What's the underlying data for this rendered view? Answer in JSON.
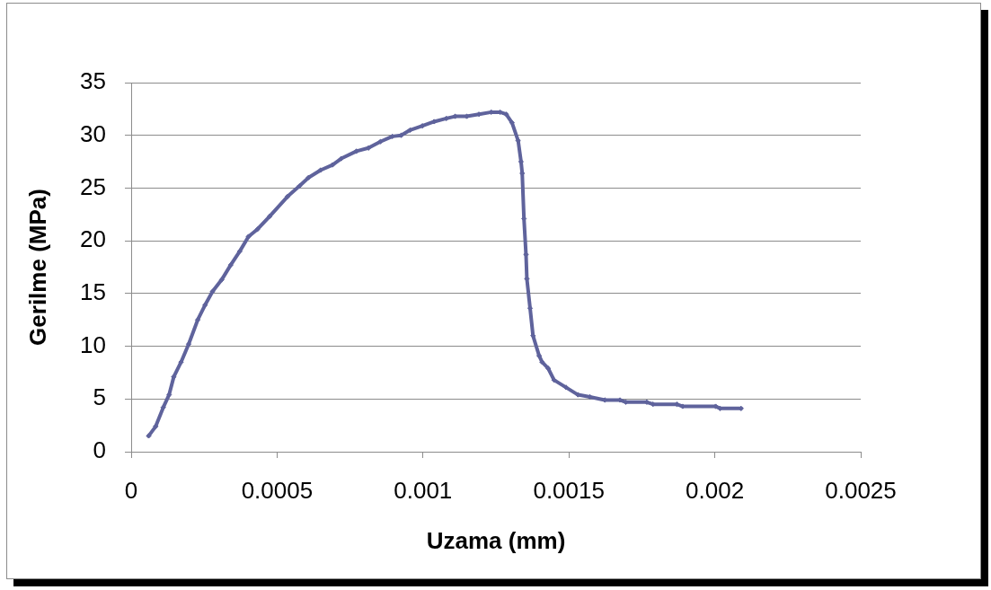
{
  "chart_data": {
    "type": "line",
    "xlabel": "Uzama (mm)",
    "ylabel": "Gerilme (MPa)",
    "x": [
      6e-05,
      8.4e-05,
      0.00011,
      0.00013,
      0.000146,
      0.000171,
      0.000197,
      0.000228,
      0.000253,
      0.000279,
      0.00031,
      0.000341,
      0.000372,
      0.000402,
      0.000433,
      0.000474,
      0.000536,
      0.000577,
      0.000608,
      0.000649,
      0.00069,
      0.00072,
      0.000772,
      0.000813,
      0.000854,
      0.000895,
      0.000925,
      0.000956,
      0.000998,
      0.001038,
      0.00108,
      0.00111,
      0.00115,
      0.001192,
      0.001234,
      0.001264,
      0.001285,
      0.001305,
      0.001326,
      0.001336,
      0.00134,
      0.001346,
      0.001353,
      0.001356,
      0.001367,
      0.001377,
      0.001398,
      0.001408,
      0.001429,
      0.001449,
      0.00149,
      0.001531,
      0.001572,
      0.001623,
      0.001675,
      0.001695,
      0.001767,
      0.001788,
      0.00187,
      0.00189,
      0.002003,
      0.002018,
      0.00209
    ],
    "series": [
      {
        "color": "#5f639c",
        "values": [
          1.5,
          2.4,
          4.2,
          5.4,
          7.1,
          8.5,
          10.2,
          12.5,
          13.9,
          15.2,
          16.3,
          17.7,
          19.0,
          20.4,
          21.1,
          22.3,
          24.2,
          25.2,
          26.0,
          26.7,
          27.2,
          27.8,
          28.5,
          28.8,
          29.4,
          29.9,
          30.0,
          30.5,
          30.9,
          31.3,
          31.6,
          31.8,
          31.8,
          32.0,
          32.2,
          32.2,
          32.0,
          31.2,
          29.5,
          27.5,
          26.4,
          22.1,
          18.7,
          16.4,
          13.6,
          11.0,
          9.1,
          8.5,
          7.9,
          6.8,
          6.1,
          5.4,
          5.2,
          4.9,
          4.9,
          4.7,
          4.7,
          4.5,
          4.5,
          4.3,
          4.3,
          4.1,
          4.1
        ]
      }
    ],
    "xlim": [
      0,
      0.0025
    ],
    "xticks": [
      0,
      0.0005,
      0.001,
      0.0015,
      0.002,
      0.0025
    ],
    "ylim": [
      0,
      35
    ],
    "yticks": [
      0,
      5,
      10,
      15,
      20,
      25,
      30,
      35
    ],
    "grid": "y",
    "marker": "diamond",
    "line_style": "solid"
  }
}
